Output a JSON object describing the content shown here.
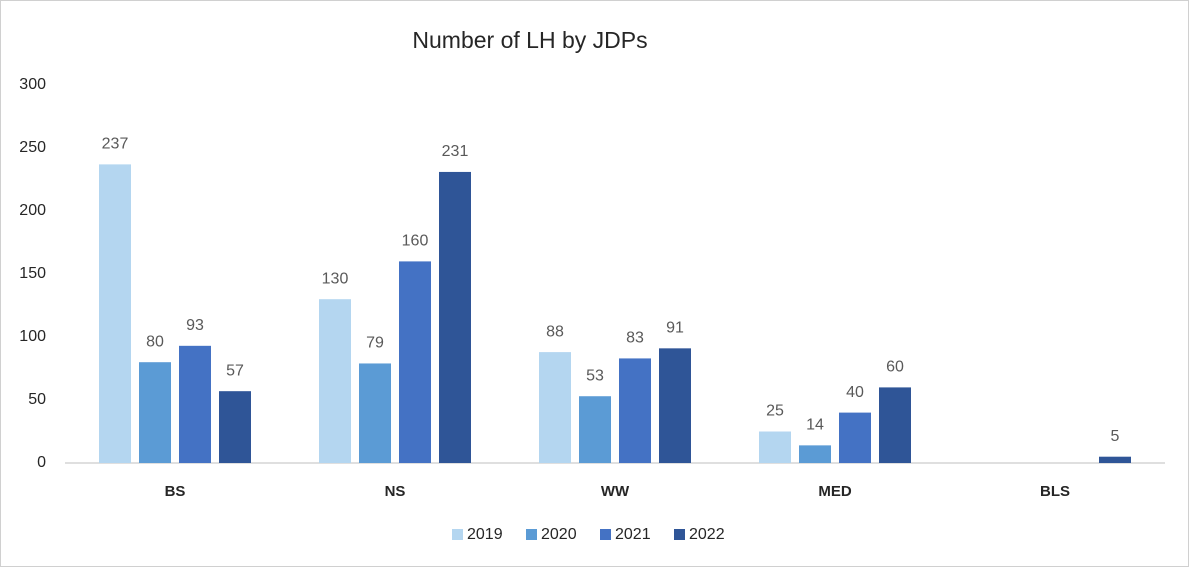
{
  "chart_data": {
    "type": "bar",
    "title": "Number of LH by JDPs",
    "categories": [
      "BS",
      "NS",
      "WW",
      "MED",
      "BLS"
    ],
    "series": [
      {
        "name": "2019",
        "color": "#b4d6f0",
        "values": [
          237,
          130,
          88,
          25,
          null
        ]
      },
      {
        "name": "2020",
        "color": "#5b9bd5",
        "values": [
          80,
          79,
          53,
          14,
          null
        ]
      },
      {
        "name": "2021",
        "color": "#4472c4",
        "values": [
          93,
          160,
          83,
          40,
          null
        ]
      },
      {
        "name": "2022",
        "color": "#2f5597",
        "values": [
          57,
          231,
          91,
          60,
          5
        ]
      }
    ],
    "ylim": [
      0,
      300
    ],
    "yticks": [
      0,
      50,
      100,
      150,
      200,
      250,
      300
    ],
    "grid": false,
    "legend": "bottom"
  }
}
